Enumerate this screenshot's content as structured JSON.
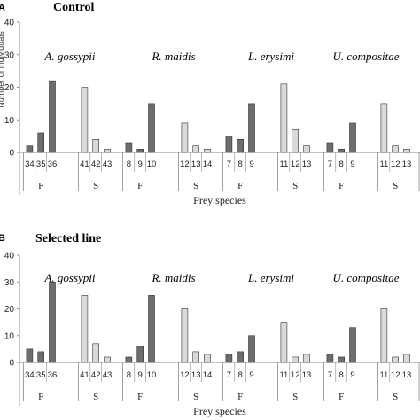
{
  "chart_data": [
    {
      "type": "bar",
      "panel": "A",
      "title": "Control",
      "ylabel": "Number of individuals",
      "xlabel": "Prey species",
      "ylim": [
        0,
        40
      ],
      "yticks": [
        0,
        10,
        20,
        30,
        40
      ],
      "species": [
        "A. gossypii",
        "R. maidis",
        "L. erysimi",
        "U. compositae"
      ],
      "groups": [
        {
          "species": "A. gossypii",
          "F": {
            "categories": [
              "34",
              "35",
              "36"
            ],
            "values": [
              2,
              6,
              22
            ]
          },
          "S": {
            "categories": [
              "41",
              "42",
              "43"
            ],
            "values": [
              20,
              4,
              1
            ]
          }
        },
        {
          "species": "R. maidis",
          "F": {
            "categories": [
              "8",
              "9",
              "10"
            ],
            "values": [
              3,
              1,
              15
            ]
          },
          "S": {
            "categories": [
              "12",
              "13",
              "14"
            ],
            "values": [
              9,
              2,
              1
            ]
          }
        },
        {
          "species": "L. erysimi",
          "F": {
            "categories": [
              "7",
              "8",
              "9"
            ],
            "values": [
              5,
              4,
              15
            ]
          },
          "S": {
            "categories": [
              "11",
              "12",
              "13"
            ],
            "values": [
              21,
              7,
              2
            ]
          }
        },
        {
          "species": "U. compositae",
          "F": {
            "categories": [
              "7",
              "8",
              "9"
            ],
            "values": [
              3,
              1,
              9
            ]
          },
          "S": {
            "categories": [
              "11",
              "12",
              "13"
            ],
            "values": [
              15,
              2,
              1
            ]
          }
        }
      ],
      "group_labels": [
        "F",
        "S"
      ]
    },
    {
      "type": "bar",
      "panel": "B",
      "title": "Selected line",
      "ylabel": "",
      "xlabel": "Prey species",
      "ylim": [
        0,
        40
      ],
      "yticks": [
        0,
        10,
        20,
        30,
        40
      ],
      "species": [
        "A. gossypii",
        "R. maidis",
        "L. erysimi",
        "U. compositae"
      ],
      "groups": [
        {
          "species": "A. gossypii",
          "F": {
            "categories": [
              "34",
              "35",
              "36"
            ],
            "values": [
              5,
              4,
              30
            ]
          },
          "S": {
            "categories": [
              "41",
              "42",
              "43"
            ],
            "values": [
              25,
              7,
              2
            ]
          }
        },
        {
          "species": "R. maidis",
          "F": {
            "categories": [
              "8",
              "9",
              "10"
            ],
            "values": [
              2,
              6,
              25
            ]
          },
          "S": {
            "categories": [
              "12",
              "13",
              "14"
            ],
            "values": [
              20,
              4,
              3
            ]
          }
        },
        {
          "species": "L. erysimi",
          "F": {
            "categories": [
              "7",
              "8",
              "9"
            ],
            "values": [
              3,
              4,
              10
            ]
          },
          "S": {
            "categories": [
              "11",
              "12",
              "13"
            ],
            "values": [
              15,
              2,
              3
            ]
          }
        },
        {
          "species": "U. compositae",
          "F": {
            "categories": [
              "7",
              "8",
              "9"
            ],
            "values": [
              3,
              2,
              13
            ]
          },
          "S": {
            "categories": [
              "11",
              "12",
              "13"
            ],
            "values": [
              20,
              2,
              3
            ]
          }
        }
      ],
      "group_labels": [
        "F",
        "S"
      ]
    }
  ],
  "colors": {
    "dark": "#6d6d6d",
    "light": "#d9d9d9",
    "stroke": "#333333",
    "axis": "#8a8a8a"
  }
}
